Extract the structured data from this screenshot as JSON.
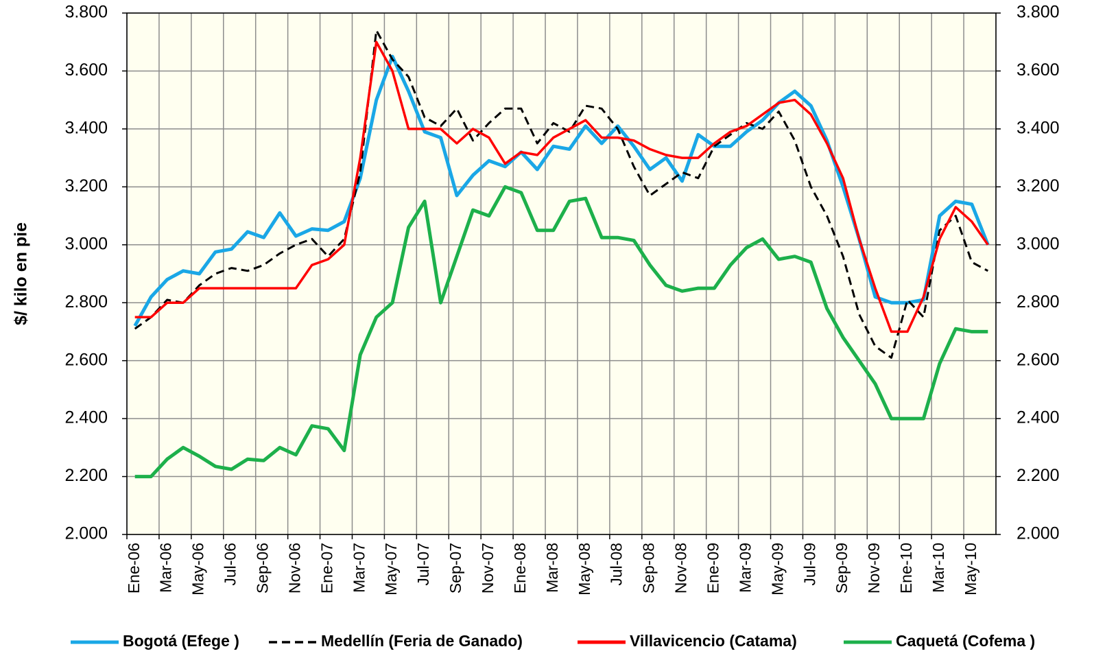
{
  "chart_data": {
    "type": "line",
    "y_label": "$/ kilo en pie",
    "categories": [
      "Ene-06",
      null,
      "Mar-06",
      null,
      "May-06",
      null,
      "Jul-06",
      null,
      "Sep-06",
      null,
      "Nov-06",
      null,
      "Ene-07",
      null,
      "Mar-07",
      null,
      "May-07",
      null,
      "Jul-07",
      null,
      "Sep-07",
      null,
      "Nov-07",
      null,
      "Ene-08",
      null,
      "Mar-08",
      null,
      "May-08",
      null,
      "Jul-08",
      null,
      "Sep-08",
      null,
      "Nov-08",
      null,
      "Ene-09",
      null,
      "Mar-09",
      null,
      "May-09",
      null,
      "Jul-09",
      null,
      "Sep-09",
      null,
      "Nov-09",
      null,
      "Ene-10",
      null,
      "Mar-10",
      null,
      "May-10",
      null
    ],
    "series": [
      {
        "name": "Bogotá (Efege )",
        "color": "#1aa7e6",
        "style": "solid",
        "values": [
          2720,
          2820,
          2880,
          2910,
          2900,
          2975,
          2985,
          3045,
          3025,
          3110,
          3030,
          3055,
          3050,
          3080,
          3230,
          3500,
          3650,
          3530,
          3390,
          3370,
          3170,
          3240,
          3290,
          3270,
          3320,
          3260,
          3340,
          3330,
          3410,
          3350,
          3410,
          3340,
          3260,
          3300,
          3220,
          3380,
          3340,
          3340,
          3390,
          3430,
          3490,
          3530,
          3480,
          3360,
          3200,
          3020,
          2820,
          2800,
          2800,
          2810,
          3100,
          3150,
          3140,
          3000
        ]
      },
      {
        "name": "Medellín (Feria de Ganado)",
        "color": "#000000",
        "style": "dashed",
        "values": [
          2710,
          2750,
          2810,
          2800,
          2860,
          2900,
          2920,
          2910,
          2930,
          2970,
          3000,
          3020,
          2960,
          3020,
          3250,
          3740,
          3640,
          3580,
          3440,
          3410,
          3470,
          3360,
          3420,
          3470,
          3470,
          3350,
          3420,
          3390,
          3480,
          3470,
          3400,
          3270,
          3170,
          3210,
          3250,
          3230,
          3340,
          3380,
          3420,
          3400,
          3460,
          3360,
          3200,
          3100,
          2960,
          2760,
          2650,
          2610,
          2810,
          2750,
          3050,
          3100,
          2940,
          2910
        ]
      },
      {
        "name": "Villavicencio (Catama)",
        "color": "#ff0000",
        "style": "solid",
        "values": [
          2750,
          2750,
          2800,
          2800,
          2850,
          2850,
          2850,
          2850,
          2850,
          2850,
          2850,
          2930,
          2950,
          3000,
          3300,
          3700,
          3600,
          3400,
          3400,
          3400,
          3350,
          3400,
          3370,
          3280,
          3320,
          3310,
          3370,
          3400,
          3430,
          3370,
          3370,
          3360,
          3330,
          3310,
          3300,
          3300,
          3350,
          3390,
          3410,
          3450,
          3490,
          3500,
          3450,
          3350,
          3230,
          3020,
          2850,
          2700,
          2700,
          2820,
          3020,
          3130,
          3080,
          3000
        ]
      },
      {
        "name": "Caquetá (Cofema )",
        "color": "#1db04b",
        "style": "solid",
        "values": [
          2200,
          2200,
          2260,
          2300,
          2270,
          2235,
          2225,
          2260,
          2255,
          2300,
          2275,
          2375,
          2365,
          2290,
          2620,
          2750,
          2800,
          3060,
          3150,
          2800,
          2960,
          3120,
          3100,
          3200,
          3180,
          3050,
          3050,
          3150,
          3160,
          3025,
          3025,
          3015,
          2930,
          2860,
          2840,
          2850,
          2850,
          2930,
          2990,
          3020,
          2950,
          2960,
          2940,
          2780,
          2680,
          2600,
          2520,
          2400,
          2400,
          2400,
          2590,
          2710,
          2700,
          2700
        ]
      }
    ],
    "ylim": [
      2000,
      3800
    ],
    "yticks": [
      {
        "value": 2000,
        "label": "2.000"
      },
      {
        "value": 2200,
        "label": "2.200"
      },
      {
        "value": 2400,
        "label": "2.400"
      },
      {
        "value": 2600,
        "label": "2.600"
      },
      {
        "value": 2800,
        "label": "2.800"
      },
      {
        "value": 3000,
        "label": "3.000"
      },
      {
        "value": 3200,
        "label": "3.200"
      },
      {
        "value": 3400,
        "label": "3.400"
      },
      {
        "value": 3600,
        "label": "3.600"
      },
      {
        "value": 3800,
        "label": "3.800"
      }
    ],
    "y2lim": [
      2000,
      3800
    ],
    "y2ticks": [
      {
        "value": 2000,
        "label": "2.000"
      },
      {
        "value": 2200,
        "label": "2.200"
      },
      {
        "value": 2400,
        "label": "2.400"
      },
      {
        "value": 2600,
        "label": "2.600"
      },
      {
        "value": 2800,
        "label": "2.800"
      },
      {
        "value": 3000,
        "label": "3.000"
      },
      {
        "value": 3200,
        "label": "3.200"
      },
      {
        "value": 3400,
        "label": "3.400"
      },
      {
        "value": 3600,
        "label": "3.600"
      },
      {
        "value": 3800,
        "label": "3.800"
      }
    ],
    "grid": true,
    "legend": "bottom",
    "plot_background": "#fffff0"
  }
}
